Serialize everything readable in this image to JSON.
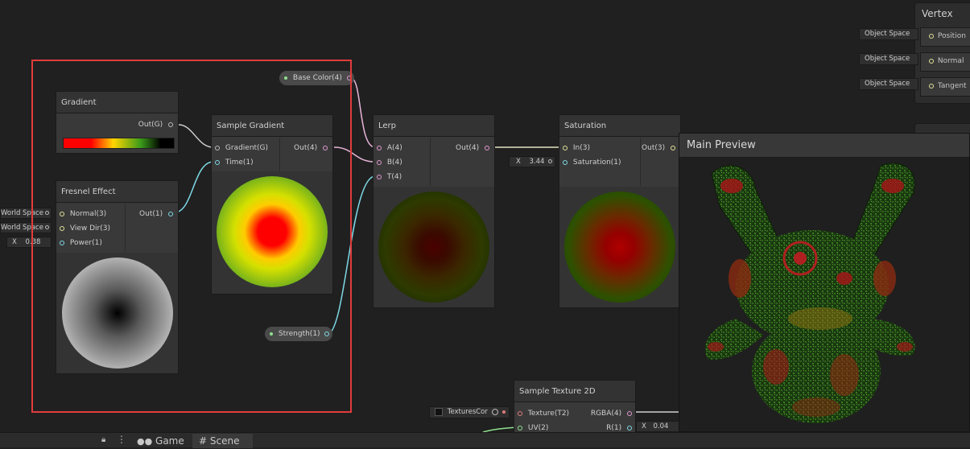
{
  "nodes": {
    "gradient": {
      "title": "Gradient",
      "out": "Out(G)"
    },
    "fresnel": {
      "title": "Fresnel Effect",
      "in_normal": "Normal(3)",
      "in_viewdir": "View Dir(3)",
      "in_power": "Power(1)",
      "out": "Out(1)",
      "normal_default": "World Space",
      "viewdir_default": "World Space",
      "power_axis": "X",
      "power_value": "0.38"
    },
    "sample_gradient": {
      "title": "Sample Gradient",
      "in_gradient": "Gradient(G)",
      "in_time": "Time(1)",
      "out": "Out(4)"
    },
    "base_color": {
      "label": "Base Color(4)"
    },
    "strength": {
      "label": "Strength(1)"
    },
    "lerp": {
      "title": "Lerp",
      "in_a": "A(4)",
      "in_b": "B(4)",
      "in_t": "T(4)",
      "out": "Out(4)"
    },
    "saturation": {
      "title": "Saturation",
      "in_in": "In(3)",
      "in_sat": "Saturation(1)",
      "out": "Out(3)",
      "sat_axis": "X",
      "sat_value": "3.44"
    },
    "vertex": {
      "title": "Vertex",
      "ports": [
        {
          "default": "Object Space",
          "label": "Position"
        },
        {
          "default": "Object Space",
          "label": "Normal"
        },
        {
          "default": "Object Space",
          "label": "Tangent"
        }
      ]
    },
    "sample_texture": {
      "title": "Sample Texture 2D",
      "in_texture": "Texture(T2)",
      "in_uv": "UV(2)",
      "out_rgba": "RGBA(4)",
      "out_r": "R(1)",
      "texture_default": "TexturesCor",
      "r_axis": "X",
      "r_value": "0.04"
    }
  },
  "main_preview": {
    "title": "Main Preview"
  },
  "bottom_bar": {
    "tabs": [
      {
        "label": "Game",
        "icon": "gamepad-icon"
      },
      {
        "label": "Scene",
        "icon": "grid-icon"
      }
    ]
  },
  "colors": {
    "selection": "#e23c3c",
    "background": "#202020"
  }
}
